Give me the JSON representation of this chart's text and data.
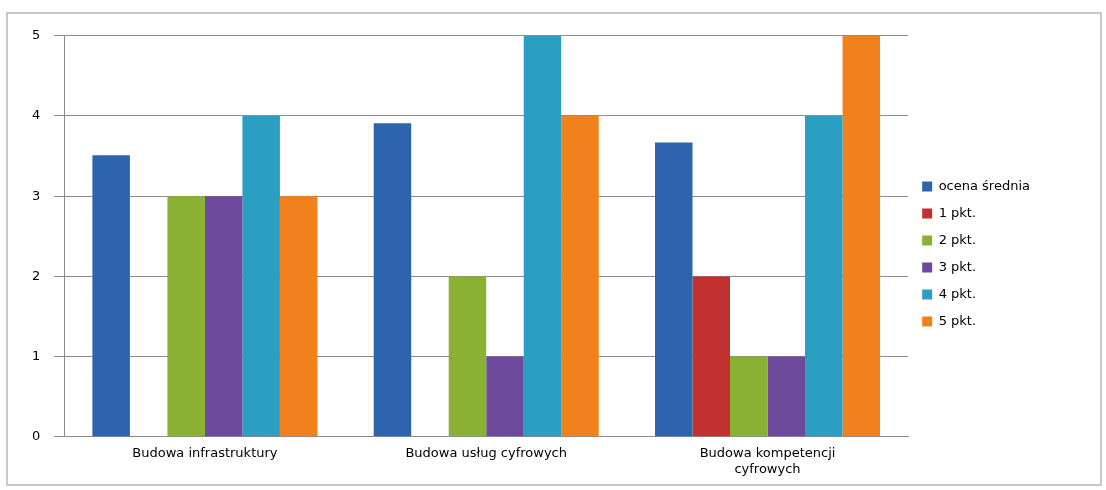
{
  "chart_data": {
    "type": "bar",
    "categories": [
      "Budowa infrastruktury",
      "Budowa usług cyfrowych",
      "Budowa kompetencji cyfrowych"
    ],
    "series": [
      {
        "name": "ocena średnia",
        "color": "#2e64ad",
        "values": [
          3.51,
          3.91,
          3.67
        ]
      },
      {
        "name": "1 pkt.",
        "color": "#c0312f",
        "values": [
          0,
          0,
          2
        ]
      },
      {
        "name": "2 pkt.",
        "color": "#8ab133",
        "values": [
          3,
          2,
          1
        ]
      },
      {
        "name": "3 pkt.",
        "color": "#6e4a9c",
        "values": [
          3,
          1,
          1
        ]
      },
      {
        "name": "4 pkt.",
        "color": "#2b9fc1",
        "values": [
          4,
          5,
          4
        ]
      },
      {
        "name": "5 pkt.",
        "color": "#f0811d",
        "values": [
          3,
          4,
          5
        ]
      }
    ],
    "ylim": [
      0,
      5
    ],
    "yticks": [
      0,
      1,
      2,
      3,
      4,
      5
    ],
    "grid": "y",
    "legend": "right"
  }
}
